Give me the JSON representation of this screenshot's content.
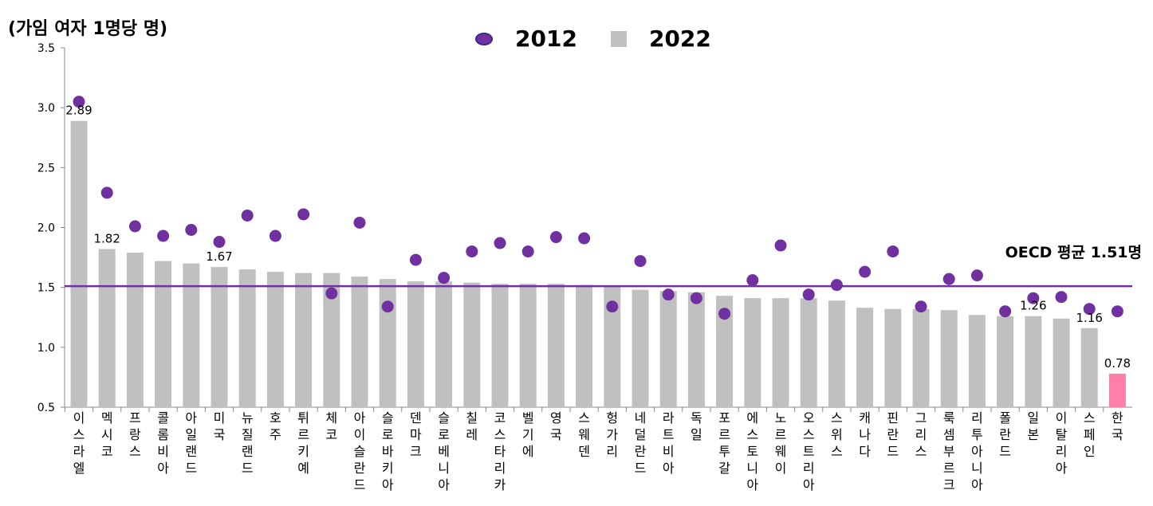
{
  "chart_data": {
    "type": "bar",
    "unit_label": "(가임 여자 1명당 명)",
    "ylim": [
      0.5,
      3.5
    ],
    "yticks": [
      "0.5",
      "1.0",
      "1.5",
      "2.0",
      "2.5",
      "3.0",
      "3.5"
    ],
    "grid": false,
    "legend_position": "top-center",
    "categories": [
      "이스라엘",
      "멕시코",
      "프랑스",
      "콜롬비아",
      "아일랜드",
      "미국",
      "뉴질랜드",
      "호주",
      "튀르키예",
      "체코",
      "아이슬란드",
      "슬로바키아",
      "덴마크",
      "슬로베니아",
      "칠레",
      "코스타리카",
      "벨기에",
      "영국",
      "스웨덴",
      "헝가리",
      "네덜란드",
      "라트비아",
      "독일",
      "포르투갈",
      "에스토니아",
      "노르웨이",
      "오스트리아",
      "스위스",
      "캐나다",
      "핀란드",
      "그리스",
      "룩셈부르크",
      "리투아니아",
      "폴란드",
      "일본",
      "이탈리아",
      "스페인",
      "한국"
    ],
    "series": [
      {
        "name": "2012",
        "style": "dot",
        "color": "#7030a0",
        "values": [
          3.05,
          2.29,
          2.01,
          1.93,
          1.98,
          1.88,
          2.1,
          1.93,
          2.11,
          1.45,
          2.04,
          1.34,
          1.73,
          1.58,
          1.8,
          1.87,
          1.8,
          1.92,
          1.91,
          1.34,
          1.72,
          1.44,
          1.41,
          1.28,
          1.56,
          1.85,
          1.44,
          1.52,
          1.63,
          1.8,
          1.34,
          1.57,
          1.6,
          1.3,
          1.41,
          1.42,
          1.32,
          1.3
        ]
      },
      {
        "name": "2022",
        "style": "bar",
        "color": "#c0c0c0",
        "highlight_color": "#ff7fa9",
        "highlight_index": 37,
        "values": [
          2.89,
          1.82,
          1.79,
          1.72,
          1.7,
          1.67,
          1.65,
          1.63,
          1.62,
          1.62,
          1.59,
          1.57,
          1.55,
          1.55,
          1.54,
          1.53,
          1.53,
          1.53,
          1.52,
          1.51,
          1.48,
          1.47,
          1.46,
          1.43,
          1.41,
          1.41,
          1.41,
          1.39,
          1.33,
          1.32,
          1.32,
          1.31,
          1.27,
          1.26,
          1.26,
          1.24,
          1.16,
          0.78
        ]
      }
    ],
    "data_labels": [
      {
        "index": 0,
        "text": "2.89"
      },
      {
        "index": 1,
        "text": "1.82"
      },
      {
        "index": 5,
        "text": "1.67"
      },
      {
        "index": 34,
        "text": "1.26"
      },
      {
        "index": 36,
        "text": "1.16"
      },
      {
        "index": 37,
        "text": "0.78"
      }
    ],
    "reference_line": {
      "value": 1.51,
      "label": "OECD 평균 1.51명",
      "color": "#7030a0"
    }
  }
}
